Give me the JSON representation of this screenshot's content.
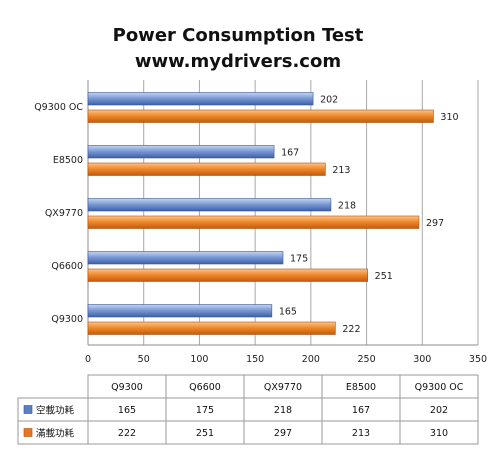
{
  "title_line1": "Power Consumption Test",
  "title_line2": "www.mydrivers.com",
  "chart_data": {
    "type": "bar",
    "orientation": "horizontal",
    "categories": [
      "Q9300",
      "Q6600",
      "QX9770",
      "E8500",
      "Q9300 OC"
    ],
    "series": [
      {
        "name": "空載功耗",
        "values": [
          165,
          175,
          218,
          167,
          202
        ],
        "color": "#5b7fc4"
      },
      {
        "name": "滿載功耗",
        "values": [
          222,
          251,
          297,
          213,
          310
        ],
        "color": "#e8771e"
      }
    ],
    "xlim": [
      0,
      350
    ],
    "xticks": [
      0,
      50,
      100,
      150,
      200,
      250,
      300,
      350
    ],
    "grid": true,
    "legend": "data-table-below"
  }
}
